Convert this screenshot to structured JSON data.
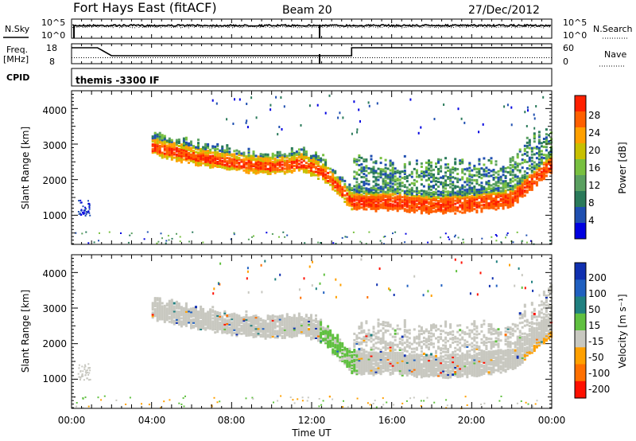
{
  "header": {
    "title": "Fort Hays East (fitACF)",
    "beam": "Beam 20",
    "date": "27/Dec/2012"
  },
  "noise_panel": {
    "left_label": "N.Sky",
    "right_label": "N.Search",
    "left_ticks": [
      "10^5",
      "10^0"
    ],
    "right_ticks": [
      "10^5",
      "10^0"
    ]
  },
  "freq_panel": {
    "left_label_top": "Freq.",
    "left_label_unit": "[MHz]",
    "left_ticks": [
      "18",
      "8"
    ],
    "right_label": "Nave",
    "right_ticks": [
      "60",
      "0"
    ]
  },
  "cpid": {
    "label": "CPID",
    "value": "themis -3300 IF"
  },
  "power_panel": {
    "ylabel": "Slant Range [km]",
    "yticks": [
      "4000",
      "3000",
      "2000",
      "1000"
    ],
    "colorbar_label": "Power [dB]",
    "colorbar_ticks": [
      "28",
      "24",
      "20",
      "16",
      "12",
      "8",
      "4"
    ],
    "colors": [
      "#0000e0",
      "#1f4fb0",
      "#2a7a5a",
      "#5aa060",
      "#78c040",
      "#c8c000",
      "#ffa000",
      "#ff6000",
      "#ff2000"
    ]
  },
  "velocity_panel": {
    "ylabel": "Slant Range [km]",
    "yticks": [
      "4000",
      "3000",
      "2000",
      "1000"
    ],
    "colorbar_label": "Velocity [m s⁻¹]",
    "colorbar_ticks": [
      "200",
      "100",
      "50",
      "15",
      "-15",
      "-50",
      "-100",
      "-200"
    ],
    "colors": [
      "#1030b0",
      "#2060c0",
      "#208080",
      "#60c040",
      "#c8c8c0",
      "#ffa000",
      "#ff7000",
      "#ff1000"
    ]
  },
  "x_axis": {
    "ticks": [
      "00:00",
      "04:00",
      "08:00",
      "12:00",
      "16:00",
      "20:00",
      "00:00"
    ],
    "label": "Time UT"
  },
  "chart_data": [
    {
      "type": "line",
      "name": "noise",
      "x_range_hours": [
        0,
        24
      ],
      "series": [
        {
          "name": "N.Sky",
          "description_values": "near top of log scale, ~10^4.5 throughout"
        },
        {
          "name": "N.Search",
          "description_values": "near top of log scale"
        }
      ]
    },
    {
      "type": "line",
      "name": "frequency_nave",
      "x": [
        0,
        1.3,
        1.3,
        2.0,
        2.0,
        14.0,
        14.0,
        24.0
      ],
      "freq_mhz": [
        16,
        16,
        16,
        12,
        12,
        12,
        16,
        16
      ],
      "nave": [
        18,
        18,
        18,
        18,
        18,
        18,
        18,
        18
      ],
      "ylim_freq": [
        8,
        18
      ],
      "ylim_nave": [
        0,
        60
      ]
    },
    {
      "type": "heatmap",
      "name": "power",
      "quantity": "Power [dB]",
      "x_range_hours": [
        0,
        24
      ],
      "y_range_km": [
        180,
        4500
      ],
      "colorbar_range": [
        0,
        30
      ],
      "band_ridge": {
        "hours": [
          4,
          6,
          8,
          10,
          11.5,
          12.5,
          13.5,
          14,
          16,
          18,
          20,
          22,
          23,
          24
        ],
        "range_km": [
          2950,
          2700,
          2500,
          2400,
          2500,
          2250,
          1700,
          1400,
          1400,
          1300,
          1350,
          1500,
          2000,
          2500
        ]
      }
    },
    {
      "type": "heatmap",
      "name": "velocity",
      "quantity": "Velocity [m s^-1]",
      "x_range_hours": [
        0,
        24
      ],
      "y_range_km": [
        180,
        4500
      ],
      "colorbar_range": [
        -200,
        200
      ]
    }
  ]
}
